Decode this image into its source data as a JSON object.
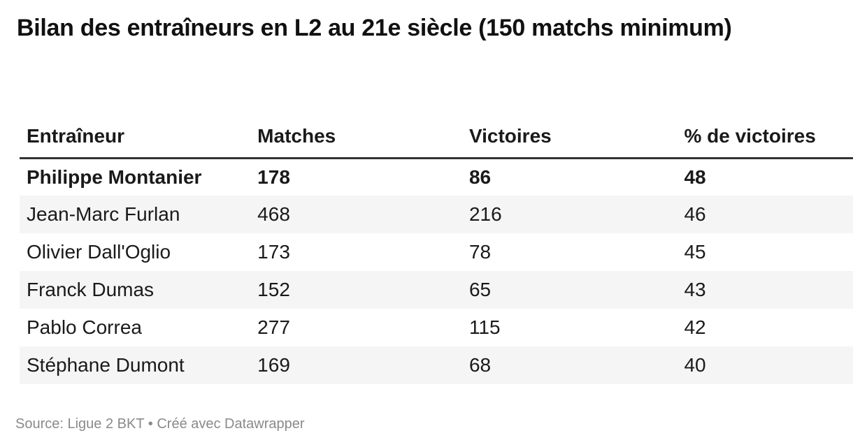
{
  "header": {
    "title": "Bilan des entraîneurs en L2 au 21e siècle (150 matchs minimum)"
  },
  "table": {
    "columns": [
      "Entraîneur",
      "Matches",
      "Victoires",
      "% de victoires"
    ],
    "rows": [
      {
        "cells": [
          "Philippe Montanier",
          "178",
          "86",
          "48"
        ],
        "highlight": true
      },
      {
        "cells": [
          "Jean-Marc Furlan",
          "468",
          "216",
          "46"
        ],
        "highlight": false
      },
      {
        "cells": [
          "Olivier Dall'Oglio",
          "173",
          "78",
          "45"
        ],
        "highlight": false
      },
      {
        "cells": [
          "Franck Dumas",
          "152",
          "65",
          "43"
        ],
        "highlight": false
      },
      {
        "cells": [
          "Pablo Correa",
          "277",
          "115",
          "42"
        ],
        "highlight": false
      },
      {
        "cells": [
          "Stéphane Dumont",
          "169",
          "68",
          "40"
        ],
        "highlight": false
      }
    ]
  },
  "footer": {
    "source": "Source: Ligue 2 BKT",
    "separator": "•",
    "credit": "Créé avec Datawrapper"
  },
  "colors": {
    "stripe": "#f5f5f5",
    "header_border": "#333333",
    "text": "#1a1a1a",
    "muted": "#8a8a8a"
  },
  "chart_data": {
    "type": "table",
    "title": "Bilan des entraîneurs en L2 au 21e siècle (150 matchs minimum)",
    "columns": [
      "Entraîneur",
      "Matches",
      "Victoires",
      "% de victoires"
    ],
    "rows": [
      {
        "entraineur": "Philippe Montanier",
        "matches": 178,
        "victoires": 86,
        "pct_victoires": 48,
        "highlighted": true
      },
      {
        "entraineur": "Jean-Marc Furlan",
        "matches": 468,
        "victoires": 216,
        "pct_victoires": 46,
        "highlighted": false
      },
      {
        "entraineur": "Olivier Dall'Oglio",
        "matches": 173,
        "victoires": 78,
        "pct_victoires": 45,
        "highlighted": false
      },
      {
        "entraineur": "Franck Dumas",
        "matches": 152,
        "victoires": 65,
        "pct_victoires": 43,
        "highlighted": false
      },
      {
        "entraineur": "Pablo Correa",
        "matches": 277,
        "victoires": 115,
        "pct_victoires": 42,
        "highlighted": false
      },
      {
        "entraineur": "Stéphane Dumont",
        "matches": 169,
        "victoires": 68,
        "pct_victoires": 40,
        "highlighted": false
      }
    ],
    "source": "Ligue 2 BKT",
    "credit": "Créé avec Datawrapper",
    "layout": {
      "striped_rows": true,
      "grid": "off",
      "header_rule": "3px solid dark"
    }
  }
}
